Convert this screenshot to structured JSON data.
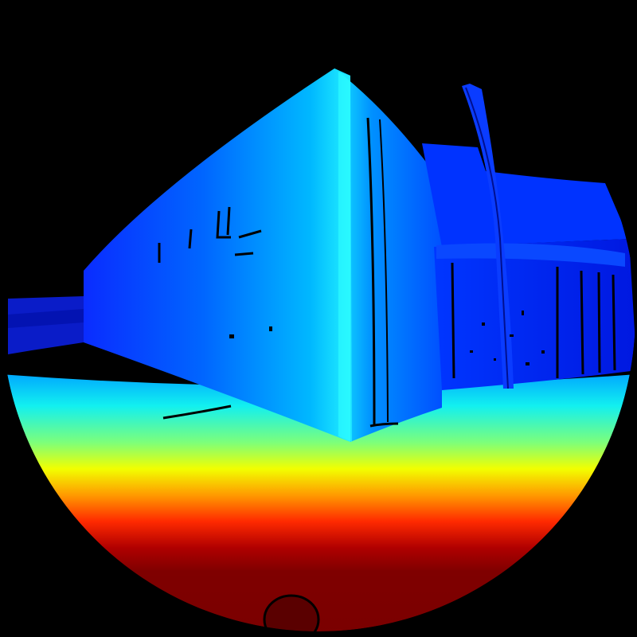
{
  "image": {
    "kind": "fisheye depth map",
    "colormap": "jet",
    "colors": {
      "background": "#000000",
      "near": "#7f0000",
      "mid_red": "#ff2a00",
      "orange": "#ff9a00",
      "yellow": "#f2ff00",
      "green": "#7dff7a",
      "cyan": "#12f0f0",
      "light_blue": "#00b7ff",
      "far": "#0030ff",
      "farthest": "#0010c8",
      "edge_lines": "#000000"
    }
  }
}
